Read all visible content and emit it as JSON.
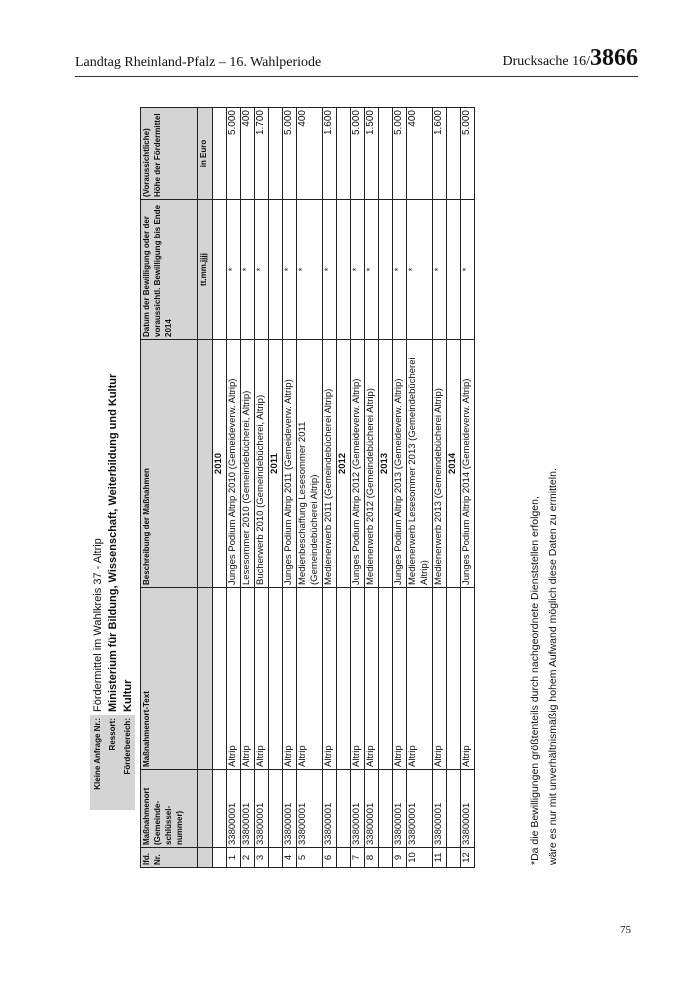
{
  "header": {
    "left": "Landtag Rheinland-Pfalz – 16. Wahlperiode",
    "right_prefix": "Drucksache 16/",
    "right_number": "3866"
  },
  "page_number": "75",
  "info": [
    {
      "label": "Kleine Anfrage Nr.:",
      "value": "Fördermittel im Wahlkreis 37 - Altrip"
    },
    {
      "label": "Ressort:",
      "value": "Ministerium für Bildung, Wissenschaft, Weiterbildung und Kultur"
    },
    {
      "label": "Förderbereich:",
      "value": "Kultur"
    }
  ],
  "table": {
    "headers": [
      "lfd. Nr.",
      "Maßnahmenort (Gemeinde-schlüssel-nummer)",
      "Maßnahmenort-Text",
      "Beschreibung der Maßnahmen",
      "Datum der Bewilligung oder der voraussichtl. Bewilligung bis Ende 2014",
      "(Voraussichtliche) Höhe der Fördermittel"
    ],
    "subheaders": [
      "",
      "",
      "",
      "",
      "tt.mm.jjjj",
      "in Euro"
    ],
    "rows": [
      {
        "year": "2010"
      },
      {
        "nr": "1",
        "code": "33800001",
        "ort": "Altrip",
        "desc": "Junges Podium Altrip 2010 (Gemeideverw. Altrip)",
        "date": "*",
        "amount": "5.000"
      },
      {
        "nr": "2",
        "code": "33800001",
        "ort": "Altrip",
        "desc": "Lesesommer 2010 (Gemeindebücherei, Altrip)",
        "date": "*",
        "amount": "400"
      },
      {
        "nr": "3",
        "code": "33800001",
        "ort": "Altrip",
        "desc": "Bucherwerb 2010 (Gemeindebücherei, Altrip)",
        "date": "*",
        "amount": "1.700"
      },
      {
        "year": "2011"
      },
      {
        "nr": "4",
        "code": "33800001",
        "ort": "Altrip",
        "desc": "Junges Podium Altrip 2011 (Gemeideverw. Altrip)",
        "date": "*",
        "amount": "5.000"
      },
      {
        "nr": "5",
        "code": "33800001",
        "ort": "Altrip",
        "desc": "Medienbeschaffung Lesesommer 2011 (Gemeindebücherei Altrip)",
        "date": "*",
        "amount": "400",
        "double": true
      },
      {
        "nr": "6",
        "code": "33800001",
        "ort": "Altrip",
        "desc": "Medienerwerb 2011 (Gemeindebücherei Altrip)",
        "date": "*",
        "amount": "1.600"
      },
      {
        "year": "2012"
      },
      {
        "nr": "7",
        "code": "33800001",
        "ort": "Altrip",
        "desc": "Junges Podium Altrip 2012 (Gemeideverw. Altrip)",
        "date": "*",
        "amount": "5.000"
      },
      {
        "nr": "8",
        "code": "33800001",
        "ort": "Altrip",
        "desc": "Medienerwerb 2012 (Gemeindebücherei Altrip)",
        "date": "*",
        "amount": "1.500"
      },
      {
        "year": "2013"
      },
      {
        "nr": "9",
        "code": "33800001",
        "ort": "Altrip",
        "desc": "Junges Podium Altrip 2013 (Gemeideverw. Altrip)",
        "date": "*",
        "amount": "5.000"
      },
      {
        "nr": "10",
        "code": "33800001",
        "ort": "Altrip",
        "desc": "Medienerwerb Lesesommer 2013 (Gemeindebücherei Altrip)",
        "date": "*",
        "amount": "400",
        "double": true
      },
      {
        "nr": "11",
        "code": "33800001",
        "ort": "Altrip",
        "desc": "Medienerwerb 2013 (Gemeindebücherei Altrip)",
        "date": "*",
        "amount": "1.600"
      },
      {
        "year": "2014"
      },
      {
        "nr": "12",
        "code": "33800001",
        "ort": "Altrip",
        "desc": "Junges Podium Altrip 2014 (Gemeideverw. Altrip)",
        "date": "*",
        "amount": "5.000"
      }
    ]
  },
  "footnote": [
    "*Da die Bewilligungen größtenteils durch nachgeordnete Dienststellen erfolgen,",
    "wäre es nur mit unverhältnismäßig hohem Aufwand möglich diese Daten zu ermitteln."
  ]
}
